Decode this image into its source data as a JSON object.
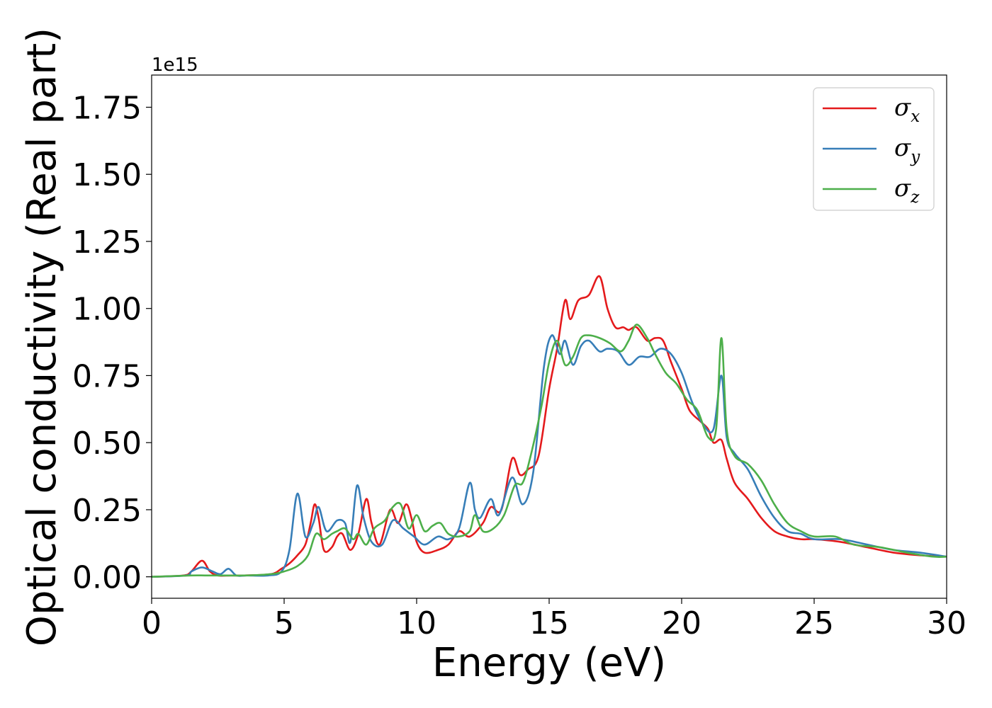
{
  "chart_data": {
    "type": "line",
    "xlabel": "Energy (eV)",
    "ylabel": "Optical conductivity (Real part)",
    "y_offset_text": "1e15",
    "xlim": [
      0,
      30
    ],
    "ylim": [
      -0.08,
      1.87
    ],
    "y_scale_factor": 1000000000000000.0,
    "x_ticks": [
      0,
      5,
      10,
      15,
      20,
      25,
      30
    ],
    "x_tick_labels": [
      "0",
      "5",
      "10",
      "15",
      "20",
      "25",
      "30"
    ],
    "y_ticks": [
      0,
      0.25,
      0.5,
      0.75,
      1.0,
      1.25,
      1.5,
      1.75
    ],
    "y_tick_labels": [
      "0.00",
      "0.25",
      "0.50",
      "0.75",
      "1.00",
      "1.25",
      "1.50",
      "1.75"
    ],
    "grid": false,
    "legend_position": "top-right",
    "series": [
      {
        "name": "σx",
        "name_base": "σ",
        "name_sub": "x",
        "color": "#e41a1c",
        "x": [
          0,
          1.2,
          1.5,
          1.9,
          2.2,
          2.5,
          3.0,
          3.5,
          4.5,
          4.9,
          5.2,
          5.5,
          5.8,
          6.0,
          6.15,
          6.3,
          6.5,
          6.8,
          7.0,
          7.2,
          7.5,
          7.8,
          8.1,
          8.3,
          8.6,
          9.0,
          9.3,
          9.6,
          9.8,
          10.0,
          10.3,
          10.8,
          11.2,
          11.6,
          12.0,
          12.5,
          12.8,
          13.2,
          13.6,
          13.9,
          14.2,
          14.6,
          15.0,
          15.3,
          15.6,
          15.8,
          16.1,
          16.5,
          16.9,
          17.2,
          17.5,
          17.8,
          18.0,
          18.3,
          18.7,
          19.0,
          19.3,
          19.6,
          20.0,
          20.3,
          20.7,
          21.0,
          21.2,
          21.5,
          21.7,
          22.0,
          22.5,
          23.0,
          23.5,
          24.0,
          24.5,
          25.0,
          26.0,
          27.0,
          28.0,
          29.0,
          30.0
        ],
        "y": [
          0.0,
          0.005,
          0.02,
          0.06,
          0.02,
          0.005,
          0.005,
          0.005,
          0.01,
          0.03,
          0.05,
          0.08,
          0.12,
          0.2,
          0.27,
          0.22,
          0.1,
          0.11,
          0.15,
          0.16,
          0.1,
          0.16,
          0.29,
          0.2,
          0.12,
          0.25,
          0.2,
          0.27,
          0.22,
          0.13,
          0.09,
          0.1,
          0.12,
          0.17,
          0.15,
          0.2,
          0.26,
          0.25,
          0.44,
          0.38,
          0.4,
          0.45,
          0.7,
          0.85,
          1.03,
          0.96,
          1.03,
          1.05,
          1.12,
          1.0,
          0.93,
          0.93,
          0.92,
          0.93,
          0.88,
          0.89,
          0.88,
          0.8,
          0.7,
          0.62,
          0.58,
          0.55,
          0.5,
          0.51,
          0.44,
          0.35,
          0.29,
          0.22,
          0.17,
          0.15,
          0.14,
          0.14,
          0.13,
          0.11,
          0.09,
          0.08,
          0.075
        ]
      },
      {
        "name": "σy",
        "name_base": "σ",
        "name_sub": "y",
        "color": "#377eb8",
        "x": [
          0,
          1.3,
          1.5,
          1.9,
          2.3,
          2.6,
          2.9,
          3.2,
          3.6,
          4.4,
          4.9,
          5.2,
          5.5,
          5.8,
          6.1,
          6.3,
          6.6,
          7.0,
          7.3,
          7.5,
          7.75,
          8.0,
          8.3,
          8.7,
          9.1,
          9.5,
          9.9,
          10.3,
          10.8,
          11.2,
          11.6,
          12.0,
          12.2,
          12.4,
          12.8,
          13.1,
          13.6,
          14.0,
          14.4,
          14.8,
          15.1,
          15.4,
          15.6,
          15.9,
          16.2,
          16.5,
          16.9,
          17.2,
          17.6,
          18.0,
          18.4,
          18.8,
          19.2,
          19.6,
          20.0,
          20.4,
          20.8,
          21.2,
          21.5,
          21.7,
          22.0,
          22.5,
          23.0,
          23.5,
          24.0,
          24.5,
          25.0,
          26.0,
          27.0,
          28.0,
          29.0,
          30.0
        ],
        "y": [
          0.0,
          0.005,
          0.02,
          0.035,
          0.02,
          0.01,
          0.03,
          0.005,
          0.005,
          0.005,
          0.02,
          0.1,
          0.31,
          0.15,
          0.2,
          0.26,
          0.17,
          0.21,
          0.2,
          0.13,
          0.34,
          0.22,
          0.13,
          0.12,
          0.21,
          0.18,
          0.15,
          0.12,
          0.15,
          0.14,
          0.18,
          0.35,
          0.25,
          0.22,
          0.29,
          0.23,
          0.37,
          0.27,
          0.39,
          0.78,
          0.9,
          0.83,
          0.88,
          0.79,
          0.86,
          0.88,
          0.84,
          0.85,
          0.84,
          0.79,
          0.82,
          0.82,
          0.85,
          0.83,
          0.76,
          0.65,
          0.57,
          0.55,
          0.75,
          0.52,
          0.46,
          0.4,
          0.3,
          0.22,
          0.17,
          0.16,
          0.14,
          0.14,
          0.12,
          0.1,
          0.09,
          0.075
        ]
      },
      {
        "name": "σz",
        "name_base": "σ",
        "name_sub": "z",
        "color": "#4daf4a",
        "x": [
          0,
          1.5,
          2.0,
          2.5,
          3.5,
          4.5,
          5.0,
          5.5,
          5.9,
          6.2,
          6.5,
          6.8,
          7.0,
          7.3,
          7.6,
          7.8,
          8.1,
          8.4,
          8.8,
          9.1,
          9.4,
          9.7,
          10.0,
          10.3,
          10.6,
          10.9,
          11.2,
          11.6,
          12.0,
          12.2,
          12.5,
          12.9,
          13.3,
          13.7,
          14.0,
          14.3,
          14.7,
          15.0,
          15.3,
          15.6,
          15.9,
          16.2,
          16.5,
          16.9,
          17.3,
          17.7,
          18.0,
          18.3,
          18.7,
          19.0,
          19.4,
          19.8,
          20.2,
          20.6,
          21.0,
          21.3,
          21.5,
          21.7,
          22.0,
          22.5,
          23.0,
          23.5,
          24.0,
          24.5,
          25.0,
          25.8,
          26.5,
          27.5,
          28.5,
          29.5,
          30.0
        ],
        "y": [
          0.0,
          0.005,
          0.005,
          0.005,
          0.005,
          0.01,
          0.02,
          0.04,
          0.08,
          0.16,
          0.14,
          0.16,
          0.17,
          0.18,
          0.14,
          0.16,
          0.12,
          0.18,
          0.21,
          0.26,
          0.27,
          0.18,
          0.23,
          0.17,
          0.19,
          0.2,
          0.16,
          0.15,
          0.17,
          0.23,
          0.17,
          0.18,
          0.23,
          0.34,
          0.35,
          0.45,
          0.63,
          0.8,
          0.88,
          0.79,
          0.82,
          0.89,
          0.9,
          0.89,
          0.87,
          0.84,
          0.88,
          0.94,
          0.89,
          0.83,
          0.76,
          0.72,
          0.66,
          0.62,
          0.52,
          0.55,
          0.89,
          0.55,
          0.45,
          0.42,
          0.36,
          0.27,
          0.2,
          0.17,
          0.15,
          0.15,
          0.12,
          0.11,
          0.09,
          0.075,
          0.075
        ]
      }
    ]
  }
}
